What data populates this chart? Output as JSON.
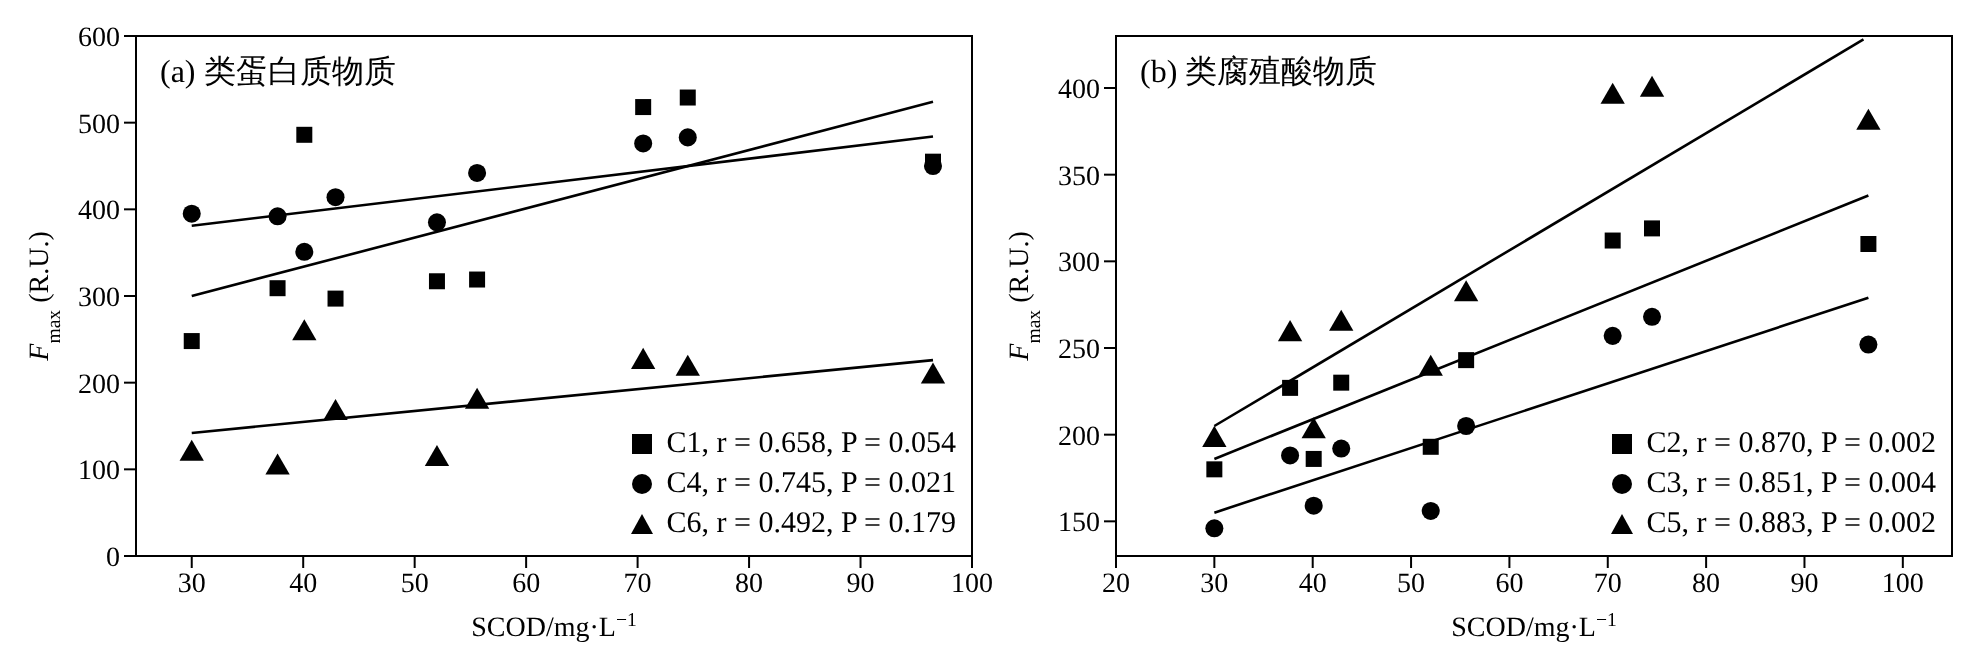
{
  "chart_data": [
    {
      "type": "scatter",
      "title": "(a) 类蛋白质物质",
      "xlabel": "SCOD/mg·L$^{−1}$",
      "ylabel": "F$_{max}$ (R.U.)",
      "x": [
        30,
        37.7,
        40.1,
        42.9,
        52,
        55.6,
        70.5,
        74.5,
        96.5
      ],
      "xlim": [
        25,
        100
      ],
      "xticks": [
        30,
        40,
        50,
        60,
        70,
        80,
        90,
        100
      ],
      "ylim": [
        0,
        600
      ],
      "yticks": [
        0,
        100,
        200,
        300,
        400,
        500,
        600
      ],
      "grid": false,
      "legend": "bottom right",
      "series": [
        {
          "name": "C1, r = 0.658, P = 0.054",
          "color": "#000000",
          "marker": "square",
          "values": [
            248,
            309,
            486,
            297,
            317,
            319,
            518,
            529,
            455
          ]
        },
        {
          "name": "C4, r = 0.745, P = 0.021",
          "color": "#000000",
          "marker": "circle",
          "values": [
            395,
            392,
            351,
            414,
            385,
            442,
            476,
            483,
            450
          ]
        },
        {
          "name": "C6, r = 0.492, P = 0.179",
          "color": "#000000",
          "marker": "triangle",
          "values": [
            118,
            102,
            257,
            165,
            112,
            178,
            224,
            216,
            207
          ]
        },
        {
          "type": "line",
          "color": "#000000",
          "x": [
            30,
            96.5
          ],
          "values": [
            300,
            524
          ]
        },
        {
          "type": "line",
          "color": "#000000",
          "x": [
            30,
            96.5
          ],
          "values": [
            381,
            484
          ]
        },
        {
          "type": "line",
          "color": "#000000",
          "x": [
            30,
            96.5
          ],
          "values": [
            142,
            226
          ]
        }
      ]
    },
    {
      "type": "scatter",
      "title": "(b) 类腐殖酸物质",
      "xlabel": "SCOD/mg·L$^{−1}$",
      "ylabel": "F$_{max}$ (R.U.)",
      "x": [
        30,
        37.7,
        40.1,
        42.9,
        52,
        55.6,
        70.5,
        74.5,
        96.5
      ],
      "xlim": [
        20,
        105
      ],
      "xticks": [
        20,
        30,
        40,
        50,
        60,
        70,
        80,
        90,
        100
      ],
      "ylim": [
        130,
        430
      ],
      "yticks": [
        150,
        200,
        250,
        300,
        350,
        400
      ],
      "grid": false,
      "legend": "bottom right",
      "series": [
        {
          "name": "C2, r = 0.870, P = 0.002",
          "color": "#000000",
          "marker": "square",
          "values": [
            180,
            227,
            186,
            230,
            193,
            243,
            312,
            319,
            310
          ]
        },
        {
          "name": "C3, r = 0.851, P = 0.004",
          "color": "#000000",
          "marker": "circle",
          "values": [
            146,
            188,
            159,
            192,
            156,
            205,
            257,
            268,
            252
          ]
        },
        {
          "name": "C5, r = 0.883, P = 0.002",
          "color": "#000000",
          "marker": "triangle",
          "values": [
            197,
            258,
            202,
            264,
            238,
            281,
            395,
            399,
            380
          ]
        },
        {
          "type": "line",
          "color": "#000000",
          "x": [
            30,
            96
          ],
          "values": [
            205,
            428
          ]
        },
        {
          "type": "line",
          "color": "#000000",
          "x": [
            30,
            96.5
          ],
          "values": [
            186,
            338
          ]
        },
        {
          "type": "line",
          "color": "#000000",
          "x": [
            30,
            96.5
          ],
          "values": [
            155,
            279
          ]
        }
      ]
    }
  ]
}
